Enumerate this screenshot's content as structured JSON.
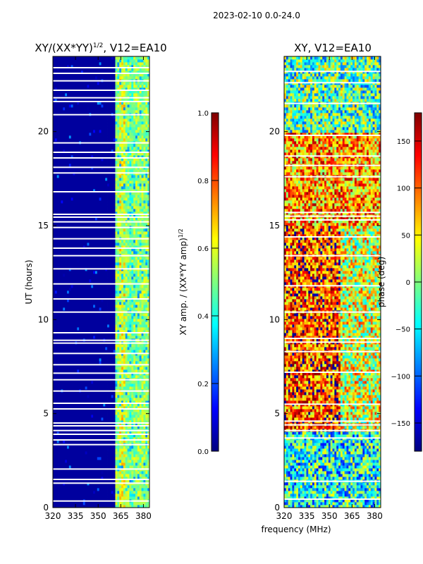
{
  "figure": {
    "suptitle": "2023-02-10 0.0-24.0"
  },
  "colors": {
    "jet": [
      "#00007f",
      "#0000ff",
      "#007fff",
      "#00ffff",
      "#7fff7f",
      "#ffff00",
      "#ff7f00",
      "#ff0000",
      "#7f0000"
    ],
    "gap": "#ffffff",
    "frame": "#000000"
  },
  "chart_data": [
    {
      "type": "heatmap",
      "panel": "left",
      "title_main": "XY/(XX*YY)",
      "title_sup": "1/2",
      "title_rest": ", V12=EA10",
      "xlabel": "",
      "ylabel": "UT (hours)",
      "xlim": [
        320,
        384
      ],
      "ylim": [
        0,
        24
      ],
      "xticks": [
        320,
        335,
        350,
        365,
        380
      ],
      "yticks": [
        0,
        5,
        10,
        15,
        20
      ],
      "value_range": [
        0.0,
        1.0
      ],
      "description_values": {
        "background_low_band_320_361": 0.03,
        "high_band_361_382": [
          0.4,
          0.6
        ],
        "peak_band_around_366": 0.68
      },
      "flagged_time_rows_hours": [
        0.35,
        1.3,
        1.5,
        2.05,
        3.35,
        3.6,
        3.9,
        4.1,
        4.35,
        4.5,
        5.25,
        5.55,
        6.2,
        6.8,
        7.15,
        7.6,
        8.2,
        8.75,
        8.9,
        9.3,
        10.4,
        11.1,
        11.9,
        12.7,
        13.4,
        13.8,
        14.3,
        14.9,
        15.2,
        15.45,
        15.6,
        16.8,
        17.8,
        18.1,
        18.6,
        18.9,
        19.4,
        20.9,
        21.6,
        21.8,
        22.2,
        22.7,
        23.1,
        23.4
      ],
      "colorbar": {
        "label": "XY amp. / (XX*YY amp)",
        "label_sup": "1/2",
        "ticks": [
          "0.0",
          "0.2",
          "0.4",
          "0.6",
          "0.8",
          "1.0"
        ],
        "range": [
          0.0,
          1.0
        ]
      }
    },
    {
      "type": "heatmap",
      "panel": "right",
      "title": "XY, V12=EA10",
      "xlabel": "frequency (MHz)",
      "ylabel": "",
      "xlim": [
        320,
        384
      ],
      "ylim": [
        0,
        24
      ],
      "xticks": [
        320,
        335,
        350,
        365,
        380
      ],
      "yticks": [
        0,
        5,
        10,
        15,
        20
      ],
      "value_range": [
        -180,
        180
      ],
      "description_values": {
        "hours_0_4_mean_phase": -40,
        "hours_4_15_low_band_mean_phase": 110,
        "hours_15_20_mean_phase": 80,
        "hours_20_24_mean_phase": -20
      },
      "flagged_time_rows_hours": [
        0.45,
        1.4,
        3.7,
        4.1,
        4.4,
        4.6,
        5.5,
        7.2,
        8.3,
        8.8,
        9.0,
        10.4,
        11.8,
        13.4,
        14.4,
        15.3,
        15.5,
        15.7,
        17.6,
        18.2,
        18.7,
        19.8,
        21.5,
        22.6,
        23.2
      ],
      "colorbar": {
        "label": "phase (deg)",
        "ticks": [
          "150",
          "100",
          "50",
          "0",
          "−50",
          "−100",
          "−150"
        ],
        "tick_values": [
          150,
          100,
          50,
          0,
          -50,
          -100,
          -150
        ],
        "range": [
          -180,
          180
        ]
      }
    }
  ]
}
